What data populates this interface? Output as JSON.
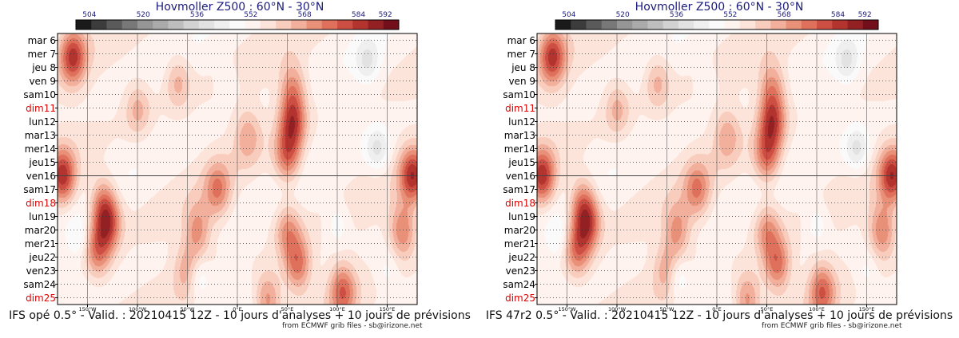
{
  "panels": [
    {
      "title": "Hovmoller Z500 : 60°N - 30°N",
      "footer": "IFS opé 0.5° - Valid. : 20210415 12Z - 10 jours d'analyses + 10 jours de prévisions",
      "credit": "from ECMWF grib files - sb@irizone.net"
    },
    {
      "title": "Hovmoller Z500 : 60°N - 30°N",
      "footer": "IFS 47r2 0.5° - Valid. : 20210415 12Z - 10 jours d'analyses + 10 jours de prévisions",
      "credit": "from ECMWF grib files - sb@irizone.net"
    }
  ],
  "chart_data": {
    "type": "heatmap",
    "title": "Hovmoller Z500 : 60°N - 30°N",
    "colorbar": {
      "labels": [
        "504",
        "520",
        "536",
        "552",
        "568",
        "584",
        "592"
      ],
      "label_values": [
        504,
        520,
        536,
        552,
        568,
        584,
        592
      ],
      "range": [
        500,
        596
      ],
      "colors": [
        "#1a1a1a",
        "#3c3c3c",
        "#5a5a5a",
        "#787878",
        "#969696",
        "#aaaaaa",
        "#bebebe",
        "#d2d2d2",
        "#e2e2e2",
        "#efefef",
        "#fafafa",
        "#fff3ef",
        "#fde4da",
        "#f9cdbd",
        "#f2af9b",
        "#e99079",
        "#df705c",
        "#cd4e42",
        "#b3332f",
        "#932124",
        "#730f1b"
      ]
    },
    "y_labels": [
      {
        "text": "mar 6",
        "weekend": false
      },
      {
        "text": "mer 7",
        "weekend": false
      },
      {
        "text": "jeu 8",
        "weekend": false
      },
      {
        "text": "ven 9",
        "weekend": false
      },
      {
        "text": "sam10",
        "weekend": false
      },
      {
        "text": "dim11",
        "weekend": true
      },
      {
        "text": "lun12",
        "weekend": false
      },
      {
        "text": "mar13",
        "weekend": false
      },
      {
        "text": "mer14",
        "weekend": false
      },
      {
        "text": "jeu15",
        "weekend": false
      },
      {
        "text": "ven16",
        "weekend": false
      },
      {
        "text": "sam17",
        "weekend": false
      },
      {
        "text": "dim18",
        "weekend": true
      },
      {
        "text": "lun19",
        "weekend": false
      },
      {
        "text": "mar20",
        "weekend": false
      },
      {
        "text": "mer21",
        "weekend": false
      },
      {
        "text": "jeu22",
        "weekend": false
      },
      {
        "text": "ven23",
        "weekend": false
      },
      {
        "text": "sam24",
        "weekend": false
      },
      {
        "text": "dim25",
        "weekend": true
      }
    ],
    "analysis_forecast_boundary": "ven16",
    "x_ticks": [
      {
        "label": "150°W",
        "lon": -150
      },
      {
        "label": "100°W",
        "lon": -100
      },
      {
        "label": "50°W",
        "lon": -50
      },
      {
        "label": "0°E",
        "lon": 0
      },
      {
        "label": "50°E",
        "lon": 50
      },
      {
        "label": "100°E",
        "lon": 100
      },
      {
        "label": "150°E",
        "lon": 150
      }
    ],
    "xlim": [
      -180,
      180
    ],
    "highs": [
      {
        "lon": -165,
        "day": 1.2,
        "value": 582
      },
      {
        "lon": -175,
        "day": 10.0,
        "value": 584
      },
      {
        "lon": 175,
        "day": 10.0,
        "value": 584
      },
      {
        "lon": -130,
        "day": 13.5,
        "value": 578
      },
      {
        "lon": -140,
        "day": 15.5,
        "value": 574
      },
      {
        "lon": -135,
        "day": 12.0,
        "value": 572
      },
      {
        "lon": 55,
        "day": 6.0,
        "value": 580
      },
      {
        "lon": 50,
        "day": 8.5,
        "value": 576
      },
      {
        "lon": 55,
        "day": 3.5,
        "value": 570
      },
      {
        "lon": 60,
        "day": 16.5,
        "value": 576
      },
      {
        "lon": 50,
        "day": 14.0,
        "value": 570
      },
      {
        "lon": -20,
        "day": 11.0,
        "value": 572
      },
      {
        "lon": -40,
        "day": 14.0,
        "value": 570
      },
      {
        "lon": 105,
        "day": 18.5,
        "value": 576
      },
      {
        "lon": 165,
        "day": 14.0,
        "value": 574
      },
      {
        "lon": -50,
        "day": 17.0,
        "value": 568
      },
      {
        "lon": 30,
        "day": 19.0,
        "value": 572
      },
      {
        "lon": -100,
        "day": 5.0,
        "value": 566
      },
      {
        "lon": -60,
        "day": 3.0,
        "value": 566
      },
      {
        "lon": 10,
        "day": 7.0,
        "value": 566
      }
    ],
    "lows": [
      {
        "lon": 140,
        "day": 8.0,
        "value": 540
      },
      {
        "lon": 130,
        "day": 1.5,
        "value": 542
      },
      {
        "lon": -40,
        "day": 17.5,
        "value": 542
      },
      {
        "lon": -160,
        "day": 14.5,
        "value": 546
      },
      {
        "lon": 100,
        "day": 13.5,
        "value": 546
      },
      {
        "lon": 150,
        "day": 17.0,
        "value": 548
      },
      {
        "lon": -10,
        "day": 3.0,
        "value": 550
      }
    ]
  }
}
